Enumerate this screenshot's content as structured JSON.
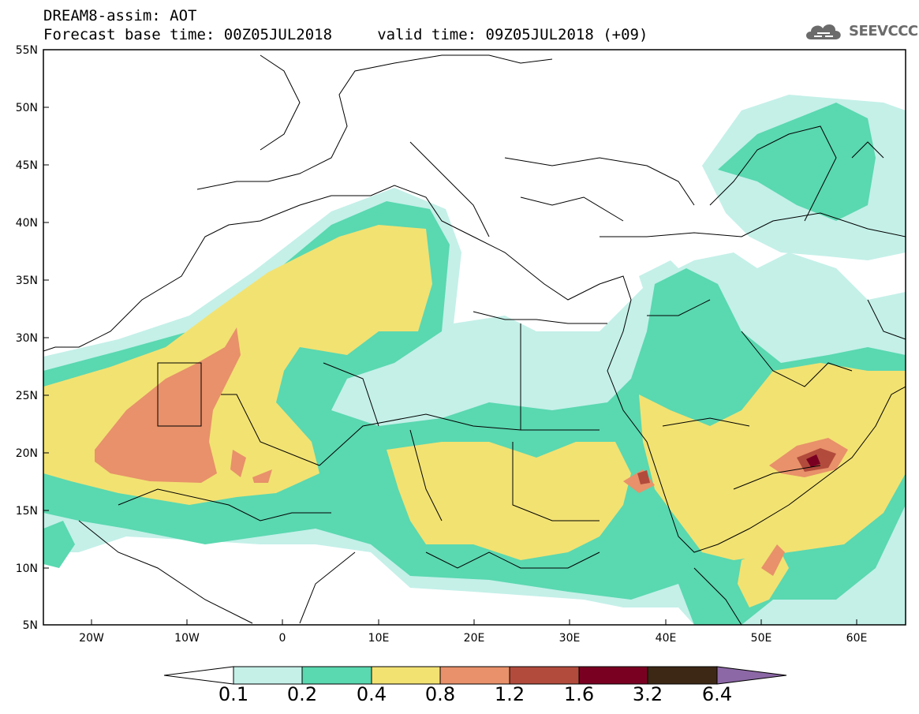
{
  "header": {
    "title_line1": "DREAM8-assim: AOT",
    "title_line2": "Forecast base time: 00Z05JUL2018     valid time: 09Z05JUL2018 (+09)"
  },
  "logo": {
    "text": "SEEVCCC",
    "icon": "cloud-icon",
    "color": "#6b6b6b"
  },
  "axes": {
    "y_labels": [
      "55N",
      "50N",
      "45N",
      "40N",
      "35N",
      "30N",
      "25N",
      "20N",
      "15N",
      "10N",
      "5N"
    ],
    "x_labels": [
      "20W",
      "10W",
      "0",
      "10E",
      "20E",
      "30E",
      "40E",
      "50E",
      "60E"
    ],
    "lon_range": [
      -25,
      65
    ],
    "lat_range": [
      5,
      55
    ]
  },
  "colorbar": {
    "labels": [
      "0.1",
      "0.2",
      "0.4",
      "0.8",
      "1.2",
      "1.6",
      "3.2",
      "6.4"
    ],
    "colors": [
      "#ffffff",
      "#c4f0e8",
      "#5ad8b0",
      "#f2e272",
      "#e8916a",
      "#b24b3c",
      "#7a0022",
      "#3d2815",
      "#8c68a6"
    ]
  },
  "levels": {
    "l1": "#c4f0e8",
    "l2": "#5ad8b0",
    "l3": "#f2e272",
    "l4": "#e8916a",
    "l5": "#b24b3c",
    "l6": "#7a0022"
  }
}
